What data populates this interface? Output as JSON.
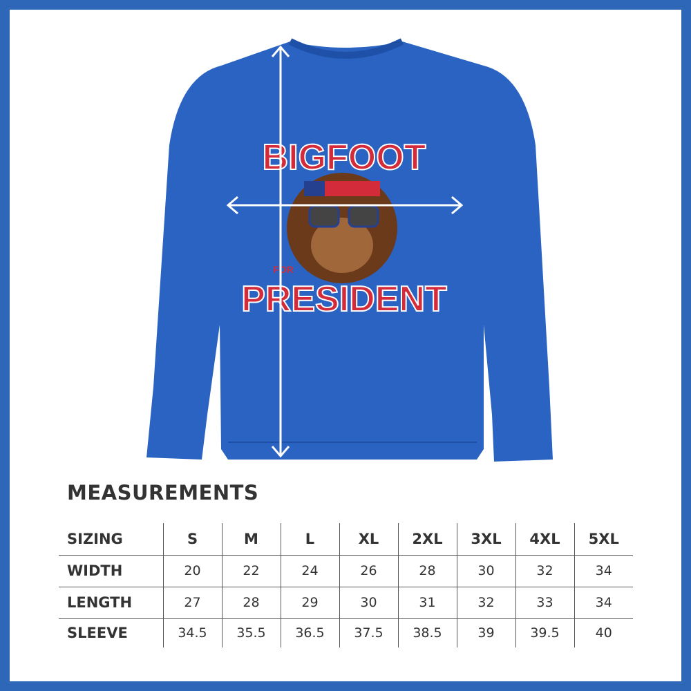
{
  "colors": {
    "border": "#2e66b8",
    "shirt": "#2a63c2",
    "graphic_red": "#d42b3a",
    "fur": "#6b3a1a"
  },
  "graphic": {
    "line1": "BIGFOOT",
    "line2": "FOR",
    "line3": "PRESIDENT"
  },
  "measurements": {
    "title": "MEASUREMENTS",
    "header": [
      "SIZING",
      "S",
      "M",
      "L",
      "XL",
      "2XL",
      "3XL",
      "4XL",
      "5XL"
    ],
    "rows": [
      [
        "WIDTH",
        "20",
        "22",
        "24",
        "26",
        "28",
        "30",
        "32",
        "34"
      ],
      [
        "LENGTH",
        "27",
        "28",
        "29",
        "30",
        "31",
        "32",
        "33",
        "34"
      ],
      [
        "SLEEVE",
        "34.5",
        "35.5",
        "36.5",
        "37.5",
        "38.5",
        "39",
        "39.5",
        "40"
      ]
    ]
  }
}
